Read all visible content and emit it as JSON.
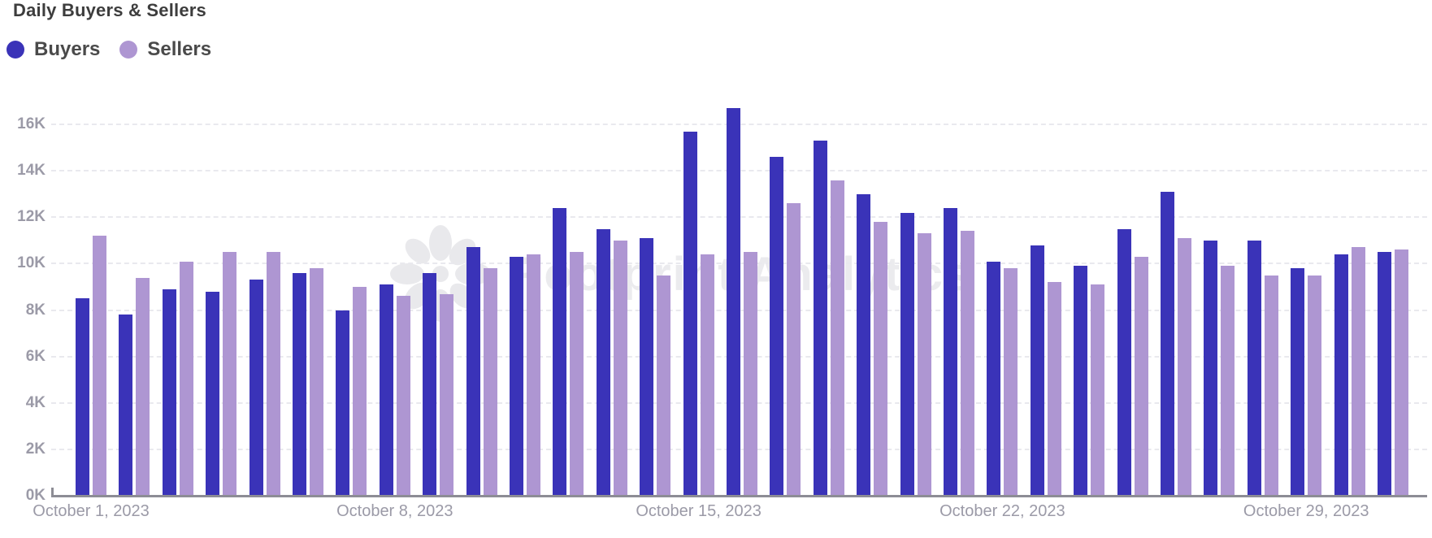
{
  "chart": {
    "title": "Daily Buyers & Sellers",
    "watermark_text": "Footprint Analytics"
  },
  "chart_data": {
    "type": "bar",
    "title": "Daily Buyers & Sellers",
    "values_unit": "K (thousands)",
    "categories": [
      "October 1, 2023",
      "October 2, 2023",
      "October 3, 2023",
      "October 4, 2023",
      "October 5, 2023",
      "October 6, 2023",
      "October 7, 2023",
      "October 8, 2023",
      "October 9, 2023",
      "October 10, 2023",
      "October 11, 2023",
      "October 12, 2023",
      "October 13, 2023",
      "October 14, 2023",
      "October 15, 2023",
      "October 16, 2023",
      "October 17, 2023",
      "October 18, 2023",
      "October 19, 2023",
      "October 20, 2023",
      "October 21, 2023",
      "October 22, 2023",
      "October 23, 2023",
      "October 24, 2023",
      "October 25, 2023",
      "October 26, 2023",
      "October 27, 2023",
      "October 28, 2023",
      "October 29, 2023",
      "October 30, 2023",
      "October 31, 2023"
    ],
    "series": [
      {
        "name": "Buyers",
        "color": "#3a33b8",
        "values": [
          8.5,
          7.8,
          8.9,
          8.8,
          9.3,
          9.6,
          8.0,
          9.1,
          9.6,
          10.7,
          10.3,
          12.4,
          11.5,
          11.1,
          15.7,
          16.7,
          14.6,
          15.3,
          13.0,
          12.2,
          12.4,
          10.1,
          10.8,
          9.9,
          11.5,
          13.1,
          11.0,
          11.0,
          9.8,
          10.4,
          10.5
        ]
      },
      {
        "name": "Sellers",
        "color": "#ae96d2",
        "values": [
          11.2,
          9.4,
          10.1,
          10.5,
          10.5,
          9.8,
          9.0,
          8.6,
          8.7,
          9.8,
          10.4,
          10.5,
          11.0,
          9.5,
          10.4,
          10.5,
          12.6,
          13.6,
          11.8,
          11.3,
          11.4,
          9.8,
          9.2,
          9.1,
          10.3,
          11.1,
          9.9,
          9.5,
          9.5,
          10.7,
          10.6
        ]
      }
    ],
    "xlabel": "",
    "ylabel": "",
    "ylim_k": [
      0,
      17.5
    ],
    "yticks": [
      "0K",
      "2K",
      "4K",
      "6K",
      "8K",
      "10K",
      "12K",
      "14K",
      "16K"
    ],
    "xtick_indices": [
      0,
      7,
      14,
      21,
      28
    ],
    "xtick_labels": [
      "October 1, 2023",
      "October 8, 2023",
      "October 15, 2023",
      "October 22, 2023",
      "October 29, 2023"
    ],
    "grid": "horizontal-dashed",
    "legend_position": "top-left"
  }
}
